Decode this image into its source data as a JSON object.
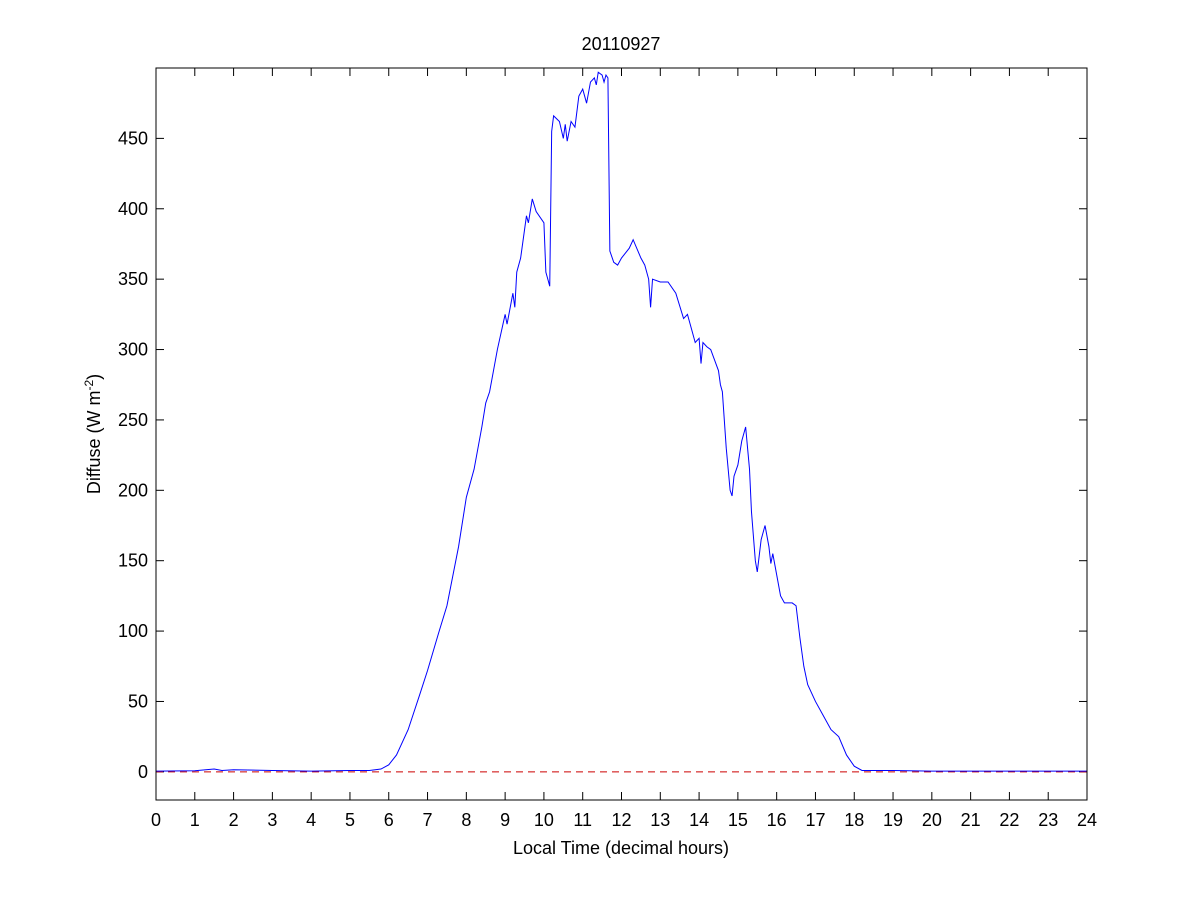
{
  "chart_data": {
    "type": "line",
    "title": "20110927",
    "xlabel": "Local Time (decimal hours)",
    "ylabel": {
      "text": "Diffuse (W m",
      "superscript": "-2",
      "suffix": ")"
    },
    "xlim": [
      0,
      24
    ],
    "ylim": [
      -20,
      500
    ],
    "xticks": [
      0,
      1,
      2,
      3,
      4,
      5,
      6,
      7,
      8,
      9,
      10,
      11,
      12,
      13,
      14,
      15,
      16,
      17,
      18,
      19,
      20,
      21,
      22,
      23,
      24
    ],
    "yticks": [
      0,
      50,
      100,
      150,
      200,
      250,
      300,
      350,
      400,
      450
    ],
    "reference_line": {
      "value": 0,
      "color": "#cc0000",
      "style": "dashed"
    },
    "x": [
      0,
      1,
      1.5,
      1.7,
      2,
      3,
      4,
      5,
      5.5,
      5.8,
      6,
      6.2,
      6.5,
      6.8,
      7,
      7.3,
      7.5,
      7.8,
      8,
      8.2,
      8.4,
      8.5,
      8.6,
      8.8,
      9,
      9.05,
      9.2,
      9.25,
      9.3,
      9.4,
      9.5,
      9.55,
      9.6,
      9.7,
      9.8,
      10,
      10.05,
      10.1,
      10.15,
      10.2,
      10.25,
      10.4,
      10.5,
      10.55,
      10.6,
      10.7,
      10.8,
      10.9,
      11,
      11.1,
      11.2,
      11.3,
      11.35,
      11.4,
      11.5,
      11.55,
      11.6,
      11.65,
      11.7,
      11.8,
      11.9,
      12,
      12.2,
      12.3,
      12.5,
      12.6,
      12.7,
      12.75,
      12.8,
      13,
      13.2,
      13.4,
      13.6,
      13.7,
      13.8,
      13.9,
      14,
      14.05,
      14.1,
      14.2,
      14.3,
      14.5,
      14.55,
      14.6,
      14.7,
      14.8,
      14.85,
      14.9,
      15,
      15.1,
      15.2,
      15.3,
      15.35,
      15.45,
      15.5,
      15.6,
      15.7,
      15.8,
      15.85,
      15.9,
      16,
      16.1,
      16.2,
      16.4,
      16.5,
      16.6,
      16.7,
      16.8,
      17,
      17.2,
      17.4,
      17.6,
      17.8,
      18,
      18.2,
      18.5,
      19,
      20,
      21,
      22,
      23,
      24
    ],
    "series": [
      {
        "name": "Diffuse",
        "color": "#0000ff",
        "values": [
          0.5,
          0.8,
          2,
          1,
          1.5,
          1,
          0.5,
          1,
          1,
          2,
          5,
          12,
          30,
          55,
          72,
          100,
          118,
          160,
          195,
          215,
          245,
          262,
          270,
          300,
          325,
          318,
          340,
          330,
          355,
          365,
          385,
          395,
          390,
          407,
          398,
          390,
          355,
          350,
          345,
          455,
          466,
          462,
          450,
          460,
          448,
          462,
          458,
          480,
          485,
          475,
          490,
          493,
          488,
          497,
          495,
          490,
          495,
          493,
          370,
          362,
          360,
          365,
          372,
          378,
          365,
          360,
          350,
          330,
          350,
          348,
          348,
          340,
          322,
          325,
          315,
          305,
          308,
          290,
          305,
          302,
          300,
          285,
          275,
          270,
          230,
          200,
          196,
          210,
          218,
          235,
          245,
          215,
          185,
          150,
          142,
          165,
          175,
          160,
          148,
          155,
          140,
          125,
          120,
          120,
          118,
          95,
          75,
          62,
          50,
          40,
          30,
          25,
          12,
          4,
          1,
          1,
          1,
          0.5,
          0.5,
          0.5,
          0.5,
          0.5
        ]
      }
    ]
  }
}
